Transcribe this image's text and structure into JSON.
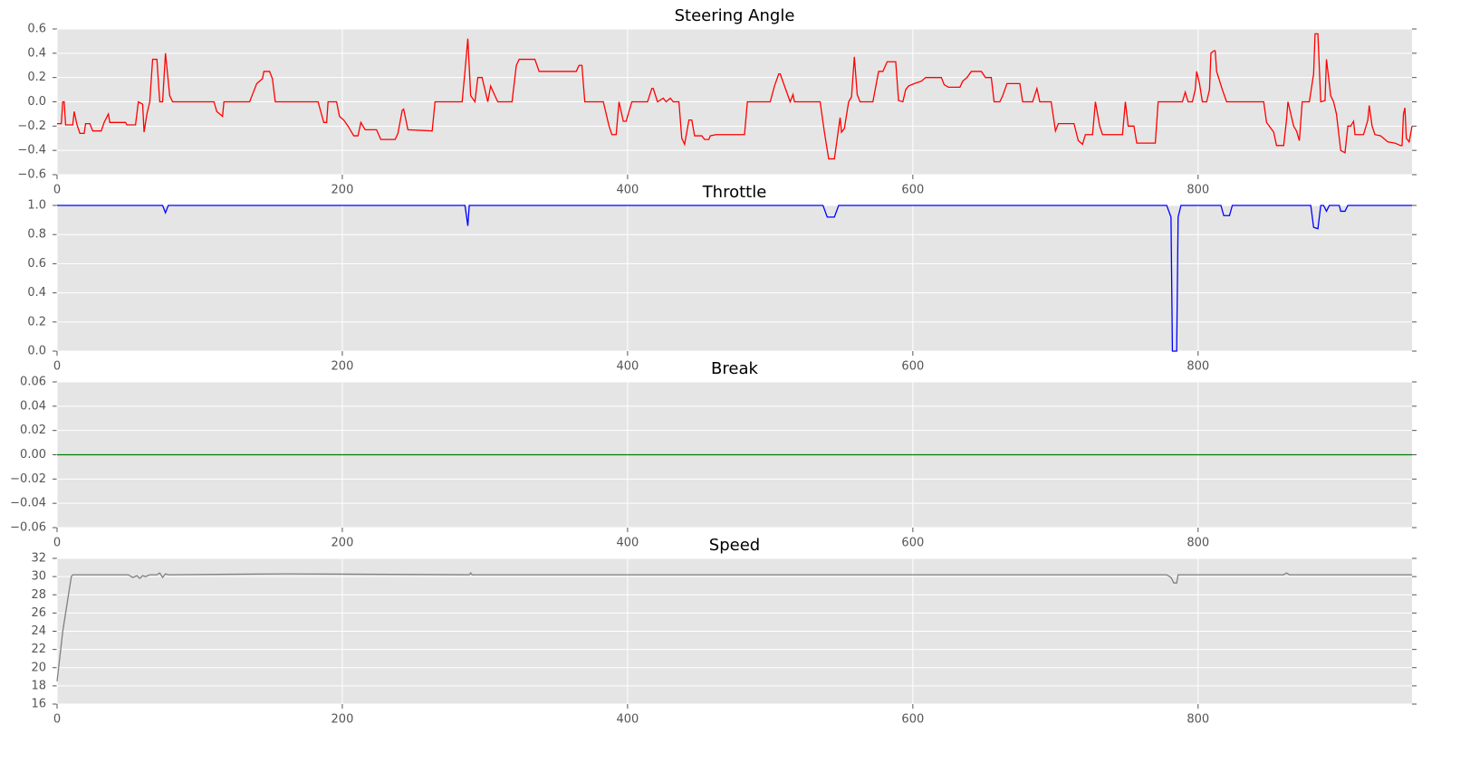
{
  "chart_data": [
    {
      "type": "line",
      "title": "Steering Angle",
      "color": "#ff0000",
      "grid": true,
      "xlim": [
        0,
        950
      ],
      "xticks": [
        0,
        200,
        400,
        600,
        800
      ],
      "ylim": [
        -0.6,
        0.6
      ],
      "yticks": [
        {
          "value": -0.6,
          "label": "−0.6"
        },
        {
          "value": -0.4,
          "label": "−0.4"
        },
        {
          "value": -0.2,
          "label": "−0.2"
        },
        {
          "value": 0,
          "label": "0.0"
        },
        0.2,
        0.4,
        0.6
      ],
      "x": [
        0,
        3,
        4,
        5,
        6,
        11,
        12,
        14,
        16,
        19,
        20,
        23,
        25,
        31,
        33,
        36,
        37,
        48,
        49,
        55,
        57,
        60,
        61,
        63,
        65,
        67,
        70,
        72,
        74,
        76,
        79,
        81,
        110,
        112,
        116,
        117,
        135,
        137,
        140,
        144,
        145,
        149,
        151,
        153,
        183,
        187,
        189,
        190,
        196,
        198,
        201,
        204,
        208,
        211,
        213,
        216,
        224,
        227,
        237,
        239,
        242,
        243,
        246,
        263,
        265,
        284,
        286,
        288,
        290,
        293,
        295,
        298,
        301,
        302,
        304,
        307,
        309,
        319,
        322,
        324,
        335,
        338,
        364,
        366,
        368,
        370,
        383,
        387,
        389,
        392,
        394,
        397,
        399,
        403,
        414,
        417,
        418,
        421,
        425,
        427,
        430,
        432,
        436,
        438,
        440,
        443,
        445,
        447,
        452,
        454,
        457,
        458,
        462,
        482,
        484,
        500,
        503,
        506,
        507,
        514,
        516,
        517,
        535,
        538,
        541,
        545,
        549,
        550,
        552,
        555,
        557,
        559,
        561,
        563,
        572,
        576,
        579,
        582,
        588,
        590,
        593,
        595,
        597,
        601,
        606,
        609,
        620,
        622,
        625,
        633,
        635,
        638,
        641,
        648,
        651,
        655,
        657,
        661,
        663,
        666,
        675,
        677,
        684,
        687,
        689,
        697,
        700,
        702,
        713,
        716,
        719,
        721,
        726,
        728,
        731,
        733,
        747,
        749,
        751,
        755,
        757,
        770,
        772,
        789,
        791,
        793,
        796,
        798,
        799,
        801,
        803,
        806,
        808,
        809,
        811,
        812,
        813,
        817,
        820,
        846,
        848,
        853,
        855,
        860,
        862,
        863,
        867,
        869,
        871,
        873,
        878,
        881,
        882,
        884,
        886,
        889,
        890,
        893,
        895,
        897,
        900,
        903,
        905,
        907,
        909,
        910,
        916,
        919,
        920,
        922,
        924,
        928,
        930,
        933,
        938,
        940,
        942,
        943,
        944,
        945,
        946,
        948,
        950
      ],
      "values": [
        -0.18,
        -0.18,
        0,
        0,
        -0.19,
        -0.19,
        -0.08,
        -0.19,
        -0.26,
        -0.26,
        -0.18,
        -0.18,
        -0.24,
        -0.24,
        -0.17,
        -0.1,
        -0.17,
        -0.17,
        -0.19,
        -0.19,
        0,
        -0.02,
        -0.25,
        -0.1,
        0,
        0.35,
        0.35,
        0,
        0,
        0.4,
        0.05,
        0,
        0,
        -0.08,
        -0.12,
        0,
        0,
        0.06,
        0.15,
        0.19,
        0.25,
        0.25,
        0.19,
        0,
        0,
        -0.17,
        -0.17,
        0,
        0,
        -0.12,
        -0.15,
        -0.2,
        -0.28,
        -0.28,
        -0.17,
        -0.23,
        -0.23,
        -0.31,
        -0.31,
        -0.26,
        -0.07,
        -0.06,
        -0.23,
        -0.24,
        0,
        0,
        0.25,
        0.52,
        0.05,
        0,
        0.2,
        0.2,
        0.05,
        0,
        0.13,
        0.05,
        0,
        0,
        0.3,
        0.35,
        0.35,
        0.25,
        0.25,
        0.3,
        0.3,
        0,
        0,
        -0.2,
        -0.27,
        -0.27,
        0,
        -0.16,
        -0.16,
        0,
        0,
        0.11,
        0.11,
        0,
        0.03,
        0,
        0.03,
        0,
        0,
        -0.3,
        -0.35,
        -0.15,
        -0.15,
        -0.28,
        -0.28,
        -0.31,
        -0.31,
        -0.28,
        -0.27,
        -0.27,
        0,
        0,
        0.13,
        0.23,
        0.23,
        0,
        0.06,
        0,
        0,
        -0.25,
        -0.47,
        -0.47,
        -0.13,
        -0.25,
        -0.22,
        0,
        0.04,
        0.37,
        0.06,
        0,
        0,
        0.25,
        0.25,
        0.33,
        0.33,
        0.01,
        0,
        0.1,
        0.13,
        0.15,
        0.17,
        0.2,
        0.2,
        0.14,
        0.12,
        0.12,
        0.17,
        0.2,
        0.25,
        0.25,
        0.2,
        0.2,
        0,
        0,
        0.05,
        0.15,
        0.15,
        0,
        0,
        0.11,
        0,
        0,
        -0.24,
        -0.18,
        -0.18,
        -0.32,
        -0.35,
        -0.27,
        -0.27,
        0,
        -0.2,
        -0.27,
        -0.27,
        0,
        -0.2,
        -0.2,
        -0.34,
        -0.34,
        0,
        0,
        0.08,
        0,
        0,
        0.1,
        0.25,
        0.15,
        0,
        0,
        0.1,
        0.4,
        0.42,
        0.42,
        0.25,
        0.1,
        0,
        0,
        -0.17,
        -0.25,
        -0.36,
        -0.36,
        -0.15,
        0,
        -0.2,
        -0.24,
        -0.32,
        0,
        0,
        0.23,
        0.56,
        0.56,
        0,
        0.01,
        0.35,
        0.05,
        0,
        -0.1,
        -0.4,
        -0.42,
        -0.2,
        -0.2,
        -0.16,
        -0.27,
        -0.27,
        -0.15,
        -0.03,
        -0.2,
        -0.27,
        -0.28,
        -0.3,
        -0.33,
        -0.34,
        -0.35,
        -0.36,
        -0.36,
        -0.1,
        -0.05,
        -0.3,
        -0.33,
        -0.2
      ]
    },
    {
      "type": "line",
      "title": "Throttle",
      "color": "#0000ff",
      "grid": true,
      "xlim": [
        0,
        950
      ],
      "xticks": [
        0,
        200,
        400,
        600,
        800
      ],
      "ylim": [
        0,
        1
      ],
      "yticks": [
        {
          "value": 0,
          "label": "0.0"
        },
        0.2,
        0.4,
        0.6,
        0.8,
        {
          "value": 1,
          "label": "1.0"
        }
      ],
      "x": [
        0,
        74,
        76,
        78,
        286,
        288,
        289,
        537,
        540,
        545,
        548,
        778,
        781,
        782,
        785,
        786,
        788,
        816,
        818,
        822,
        824,
        879,
        881,
        884,
        886,
        888,
        890,
        892,
        899,
        900,
        903,
        905,
        950
      ],
      "values": [
        1,
        1,
        0.95,
        1,
        1,
        0.86,
        1,
        1,
        0.92,
        0.92,
        1,
        1,
        0.92,
        0,
        0,
        0.92,
        1,
        1,
        0.93,
        0.93,
        1,
        1,
        0.85,
        0.84,
        1,
        1,
        0.96,
        1,
        1,
        0.96,
        0.96,
        1,
        1
      ]
    },
    {
      "type": "line",
      "title": "Break",
      "color": "#007f00",
      "grid": true,
      "xlim": [
        0,
        950
      ],
      "xticks": [
        0,
        200,
        400,
        600,
        800
      ],
      "ylim": [
        -0.06,
        0.06
      ],
      "yticks": [
        {
          "value": -0.06,
          "label": "−0.06"
        },
        {
          "value": -0.04,
          "label": "−0.04"
        },
        {
          "value": -0.02,
          "label": "−0.02"
        },
        {
          "value": 0,
          "label": "0.00"
        },
        0.02,
        0.04,
        0.06
      ],
      "x": [
        0,
        950
      ],
      "values": [
        0,
        0
      ]
    },
    {
      "type": "line",
      "title": "Speed",
      "color": "#808080",
      "grid": true,
      "xlim": [
        0,
        950
      ],
      "xticks": [
        0,
        200,
        400,
        600,
        800
      ],
      "ylim": [
        16,
        32
      ],
      "yticks": [
        16,
        18,
        20,
        22,
        24,
        26,
        28,
        30,
        32
      ],
      "x": [
        0,
        4,
        10,
        11,
        50,
        53,
        56,
        58,
        60,
        62,
        65,
        70,
        72,
        74,
        76,
        78,
        160,
        289,
        290,
        291,
        778,
        781,
        783,
        785,
        786,
        860,
        862,
        864,
        950
      ],
      "values": [
        18.5,
        24,
        30,
        30.2,
        30.2,
        29.9,
        30.1,
        29.8,
        30.1,
        30,
        30.2,
        30.2,
        30.4,
        29.9,
        30.3,
        30.2,
        30.3,
        30.2,
        30.4,
        30.2,
        30.2,
        29.9,
        29.3,
        29.3,
        30.2,
        30.2,
        30.4,
        30.2,
        30.2
      ]
    }
  ]
}
